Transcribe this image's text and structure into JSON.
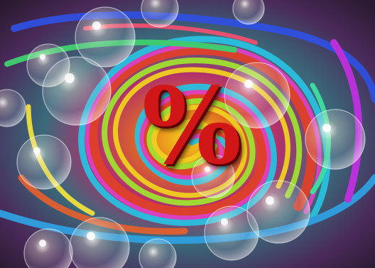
{
  "image": {
    "description": "",
    "symbol": "%",
    "colors": {
      "symbol": "#d01616",
      "border_top": "#2a3cc8",
      "border_left": "#2a55e6",
      "border_right": "#e01818",
      "border_bottom": "#1a9a2a",
      "swirl_center": "#f6d21a"
    }
  }
}
